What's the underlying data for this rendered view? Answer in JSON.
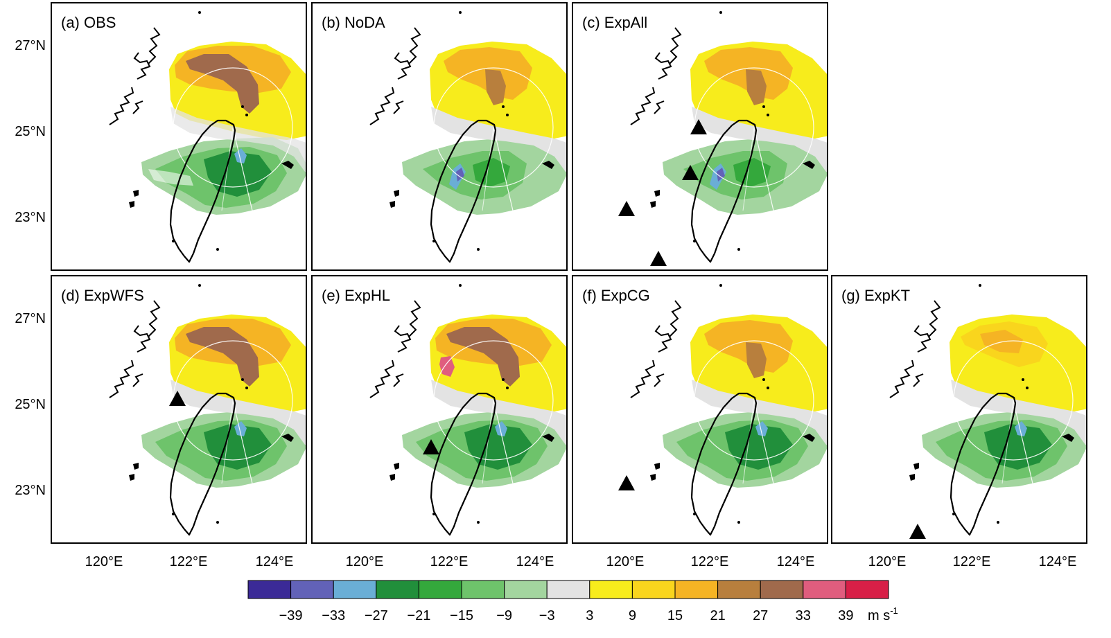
{
  "axes": {
    "lat_ticks": [
      "27°N",
      "25°N",
      "23°N"
    ],
    "lon_ticks": [
      "120°E",
      "122°E",
      "124°E"
    ]
  },
  "panels": [
    {
      "label": "(a) OBS",
      "data_coverage": "sparse",
      "north": "strong-positive",
      "south": "moderate-negative",
      "radar_sites": 0
    },
    {
      "label": "(b) NoDA",
      "data_coverage": "full",
      "north": "moderate-positive",
      "south": "weak-negative",
      "radar_sites": 0
    },
    {
      "label": "(c) ExpAll",
      "data_coverage": "full",
      "north": "moderate-positive",
      "south": "weak-negative",
      "radar_sites": 4
    },
    {
      "label": "(d) ExpWFS",
      "data_coverage": "full",
      "north": "strong-positive",
      "south": "moderate-negative",
      "radar_sites": 1
    },
    {
      "label": "(e) ExpHL",
      "data_coverage": "full",
      "north": "strong-positive",
      "south": "moderate-negative",
      "radar_sites": 1
    },
    {
      "label": "(f) ExpCG",
      "data_coverage": "full",
      "north": "moderate-positive",
      "south": "moderate-negative",
      "radar_sites": 1
    },
    {
      "label": "(g) ExpKT",
      "data_coverage": "full",
      "north": "weak-positive",
      "south": "moderate-negative",
      "radar_sites": 1
    }
  ],
  "colorbar": {
    "colors": [
      "#3b2a97",
      "#6262b8",
      "#6aaed6",
      "#218f3b",
      "#34a83c",
      "#6ec36b",
      "#a3d59f",
      "#e3e3e3",
      "#f7ec1c",
      "#f9d51d",
      "#f5b424",
      "#b87f3d",
      "#a06a4c",
      "#e05d7e",
      "#d81f47"
    ],
    "tick_labels": [
      "−39",
      "−33",
      "−27",
      "−21",
      "−15",
      "−9",
      "−3",
      "3",
      "9",
      "15",
      "21",
      "27",
      "33",
      "39"
    ],
    "units": "m s",
    "units_exp": "-1"
  }
}
